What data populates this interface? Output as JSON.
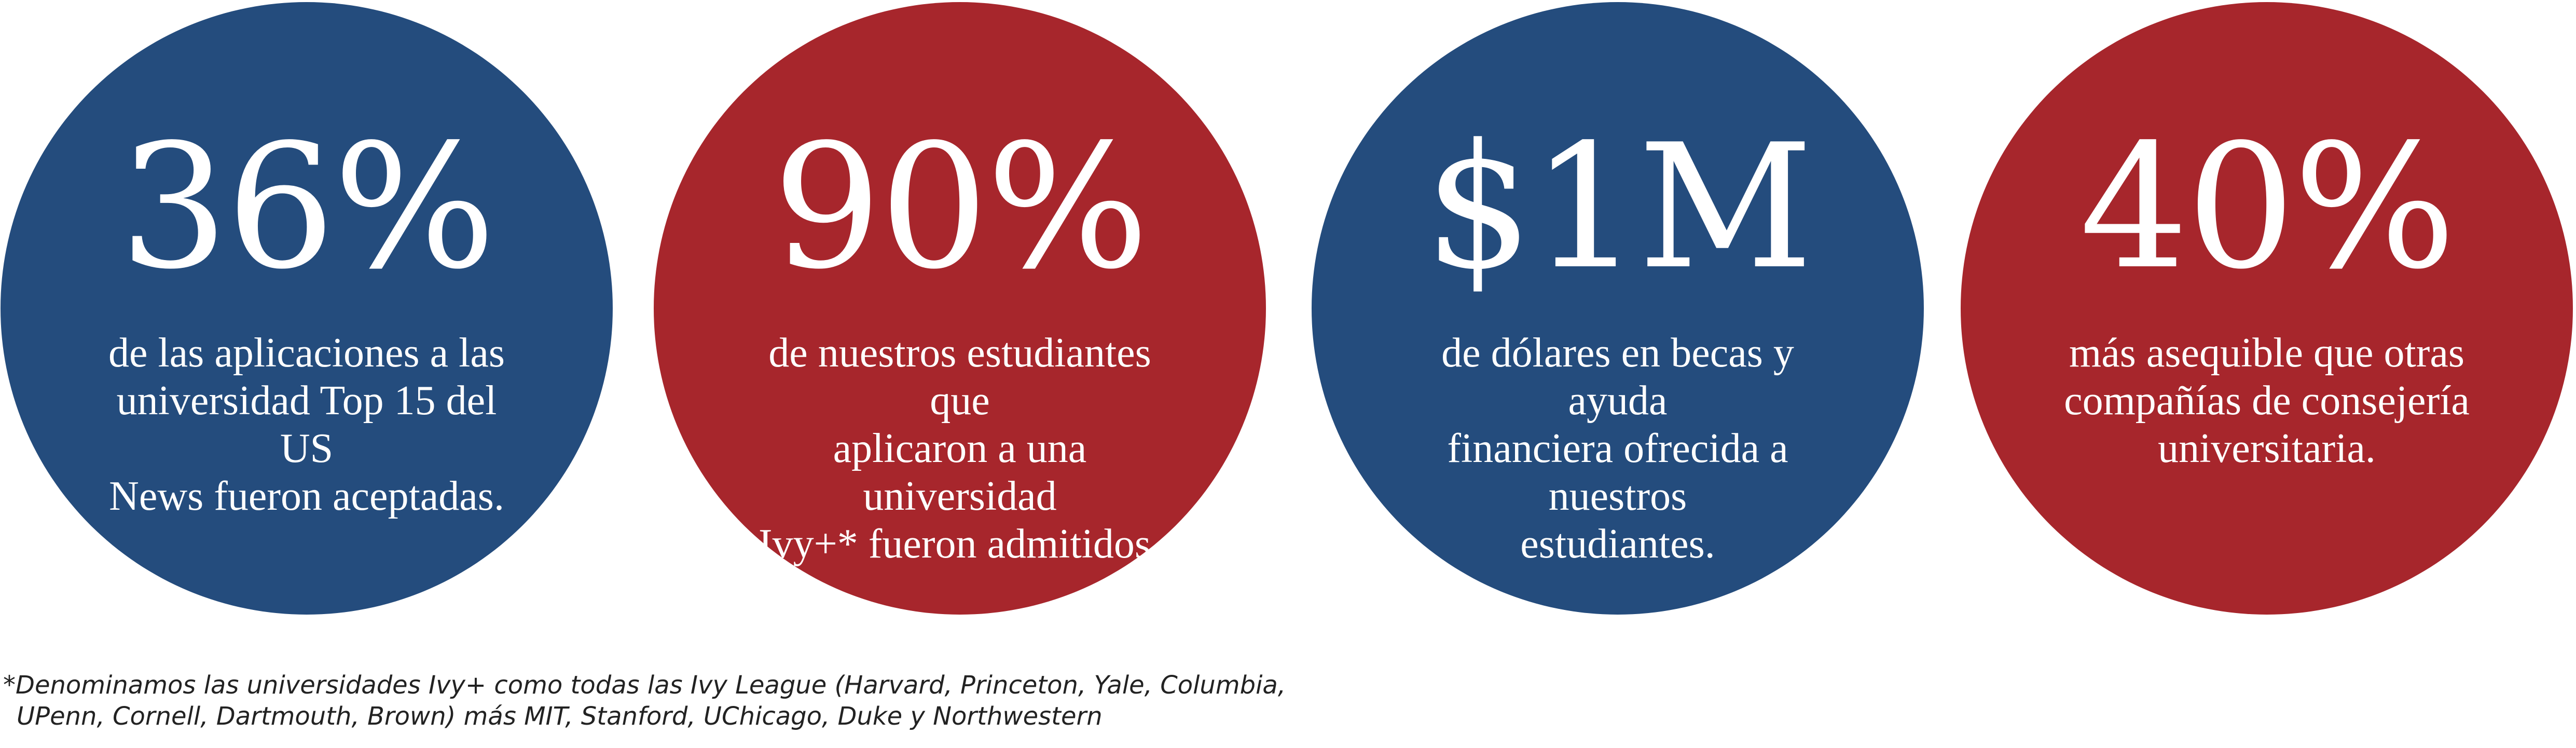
{
  "colors": {
    "navy": "#244c7d",
    "red": "#a7262c",
    "text_on_circle": "#ffffff",
    "footnote_text": "#222222"
  },
  "stats": [
    {
      "value": "36%",
      "description_lines": [
        "de las aplicaciones a las",
        "universidad Top 15 del US",
        "News fueron aceptadas."
      ],
      "color": "#244c7d"
    },
    {
      "value": "90%",
      "description_lines": [
        "de nuestros estudiantes que",
        "aplicaron a una universidad",
        "Ivy+* fueron admitidos."
      ],
      "color": "#a7262c"
    },
    {
      "value": "$1M",
      "description_lines": [
        "de dólares en becas y ayuda",
        "financiera ofrecida a nuestros",
        "estudiantes."
      ],
      "color": "#244c7d"
    },
    {
      "value": "40%",
      "description_lines": [
        "más asequible que otras",
        "compañías de consejería",
        "universitaria."
      ],
      "color": "#a7262c"
    }
  ],
  "footnote": {
    "lines": [
      "*Denominamos las universidades Ivy+ como todas las Ivy League (Harvard, Princeton, Yale, Columbia,",
      "UPenn, Cornell, Dartmouth, Brown) más MIT, Stanford, UChicago, Duke y Northwestern"
    ]
  }
}
